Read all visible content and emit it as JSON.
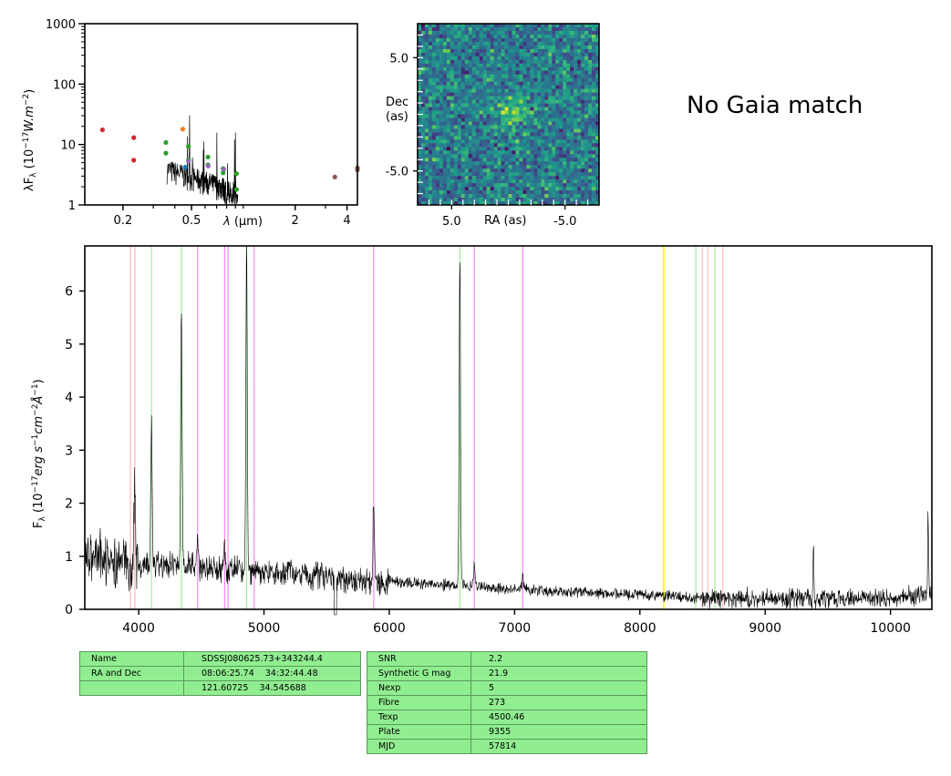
{
  "chart_data": [
    {
      "type": "scatter",
      "panel": "sed",
      "xlabel_prefix": "λ",
      "xlabel_unit": " (μm)",
      "ylabel_pre": "λF",
      "ylabel_sub": "λ",
      "ylabel_post": " (10",
      "ylabel_exp": "−17",
      "ylabel_unit": "W.m",
      "ylabel_exp2": "−2",
      "ylabel_close": ")",
      "xscale": "log",
      "yscale": "log",
      "xlim": [
        0.12,
        4.6
      ],
      "ylim": [
        1,
        1000
      ],
      "xticks": [
        {
          "v": 0.2,
          "label": "0.2"
        },
        {
          "v": 0.5,
          "label": "0.5"
        },
        {
          "v": 2,
          "label": "2"
        },
        {
          "v": 4,
          "label": "4"
        }
      ],
      "yticks": [
        {
          "v": 1,
          "label": "1"
        },
        {
          "v": 10,
          "label": "10"
        },
        {
          "v": 100,
          "label": "100"
        },
        {
          "v": 1000,
          "label": "1000"
        }
      ],
      "series": [
        {
          "color": "#d62728",
          "points": [
            [
              0.152,
              17.5
            ],
            [
              0.231,
              13.0
            ],
            [
              0.231,
              5.5
            ]
          ]
        },
        {
          "color": "#2ca02c",
          "points": [
            [
              0.355,
              10.8
            ],
            [
              0.355,
              7.2
            ],
            [
              0.48,
              9.3
            ],
            [
              0.48,
              5.6
            ],
            [
              0.623,
              6.2
            ],
            [
              0.623,
              4.6
            ],
            [
              0.763,
              3.4
            ],
            [
              0.763,
              4.0
            ],
            [
              0.913,
              3.3
            ],
            [
              0.913,
              1.8
            ]
          ]
        },
        {
          "color": "#ff7f0e",
          "points": [
            [
              0.445,
              18.0
            ]
          ]
        },
        {
          "color": "#1f77b4",
          "points": [
            [
              0.46,
              4.2
            ]
          ]
        },
        {
          "color": "#9467bd",
          "points": [
            [
              0.48,
              5.3
            ],
            [
              0.625,
              4.4
            ],
            [
              0.77,
              3.9
            ]
          ]
        },
        {
          "color": "#8c564b",
          "points": [
            [
              3.4,
              2.9
            ],
            [
              4.6,
              3.8
            ],
            [
              4.6,
              4.1
            ]
          ]
        }
      ]
    },
    {
      "type": "heatmap",
      "panel": "image",
      "xlabel": "RA (as)",
      "ylabel_line1": "Dec",
      "ylabel_line2": "(as)",
      "xticks": [
        {
          "v": 5.0,
          "label": "5.0"
        },
        {
          "v": -5.0,
          "label": "-5.0"
        }
      ],
      "yticks": [
        {
          "v": 5.0,
          "label": "5.0"
        },
        {
          "v": -5.0,
          "label": "-5.0"
        }
      ],
      "xlim": [
        8,
        -8
      ],
      "ylim": [
        -8,
        8
      ],
      "colormap": "viridis"
    },
    {
      "type": "line",
      "panel": "spectrum",
      "ylabel_pre": "F",
      "ylabel_sub": "λ",
      "ylabel_post": " (10",
      "ylabel_exp": "−17",
      "ylabel_unit1": "erg s",
      "ylabel_exp1": "−1",
      "ylabel_unit2": "cm",
      "ylabel_exp2": "−2",
      "ylabel_unit3": "Å",
      "ylabel_exp3": "−1",
      "ylabel_close": ")",
      "xlim": [
        3570,
        10330
      ],
      "ylim": [
        0,
        6.85
      ],
      "xticks": [
        {
          "v": 4000,
          "label": "4000"
        },
        {
          "v": 5000,
          "label": "5000"
        },
        {
          "v": 6000,
          "label": "6000"
        },
        {
          "v": 7000,
          "label": "7000"
        },
        {
          "v": 8000,
          "label": "8000"
        },
        {
          "v": 9000,
          "label": "9000"
        },
        {
          "v": 10000,
          "label": "10000"
        }
      ],
      "yticks": [
        {
          "v": 0,
          "label": "0"
        },
        {
          "v": 1,
          "label": "1"
        },
        {
          "v": 2,
          "label": "2"
        },
        {
          "v": 3,
          "label": "3"
        },
        {
          "v": 4,
          "label": "4"
        },
        {
          "v": 5,
          "label": "5"
        },
        {
          "v": 6,
          "label": "6"
        }
      ],
      "continuum": [
        [
          3570,
          1.0
        ],
        [
          4000,
          0.85
        ],
        [
          4500,
          0.8
        ],
        [
          5000,
          0.72
        ],
        [
          5500,
          0.6
        ],
        [
          6000,
          0.52
        ],
        [
          6500,
          0.45
        ],
        [
          7000,
          0.38
        ],
        [
          7500,
          0.32
        ],
        [
          8000,
          0.27
        ],
        [
          8500,
          0.22
        ],
        [
          9000,
          0.2
        ],
        [
          9500,
          0.2
        ],
        [
          10000,
          0.22
        ],
        [
          10330,
          0.3
        ]
      ],
      "emission_lines": [
        {
          "x": 3969,
          "peak": 1.7
        },
        {
          "x": 4102,
          "peak": 2.8
        },
        {
          "x": 4341,
          "peak": 5.0
        },
        {
          "x": 4471,
          "peak": 0.5
        },
        {
          "x": 4686,
          "peak": 0.4
        },
        {
          "x": 4861,
          "peak": 6.1
        },
        {
          "x": 5876,
          "peak": 1.6
        },
        {
          "x": 6563,
          "peak": 6.2
        },
        {
          "x": 6678,
          "peak": 0.4
        },
        {
          "x": 7065,
          "peak": 0.3
        },
        {
          "x": 9385,
          "peak": 0.9
        },
        {
          "x": 10300,
          "peak": 1.5
        }
      ],
      "vlines": [
        {
          "x": 3934,
          "color": "#ffb6b6"
        },
        {
          "x": 3969,
          "color": "#ffb6b6"
        },
        {
          "x": 4102,
          "color": "#90ee90"
        },
        {
          "x": 4341,
          "color": "#90ee90"
        },
        {
          "x": 4471,
          "color": "#ee82ee"
        },
        {
          "x": 4686,
          "color": "#ee82ee"
        },
        {
          "x": 4713,
          "color": "#ee82ee"
        },
        {
          "x": 4861,
          "color": "#90ee90"
        },
        {
          "x": 4922,
          "color": "#ee82ee"
        },
        {
          "x": 5876,
          "color": "#ee82ee"
        },
        {
          "x": 6563,
          "color": "#90ee90"
        },
        {
          "x": 6678,
          "color": "#ee82ee"
        },
        {
          "x": 7065,
          "color": "#ee82ee"
        },
        {
          "x": 8190,
          "color": "#ffff00"
        },
        {
          "x": 8446,
          "color": "#90ee90"
        },
        {
          "x": 8498,
          "color": "#ffb6b6"
        },
        {
          "x": 8542,
          "color": "#ffb6b6"
        },
        {
          "x": 8598,
          "color": "#90ee90"
        },
        {
          "x": 8662,
          "color": "#ffb6b6"
        }
      ]
    }
  ],
  "gaia_text": "No Gaia match",
  "table_left": [
    {
      "k": "Name",
      "v": "SDSSJ080625.73+343244.4"
    },
    {
      "k": "RA and Dec",
      "v": "08:06:25.74    34:32:44.48"
    },
    {
      "k": "",
      "v": "121.60725    34.545688"
    }
  ],
  "table_right": [
    {
      "k": "SNR",
      "v": "2.2"
    },
    {
      "k": "Synthetic G mag",
      "v": "21.9"
    },
    {
      "k": "Nexp",
      "v": "5"
    },
    {
      "k": "Fibre",
      "v": "273"
    },
    {
      "k": "Texp",
      "v": "4500.46"
    },
    {
      "k": "Plate",
      "v": "9355"
    },
    {
      "k": "MJD",
      "v": "57814"
    }
  ]
}
